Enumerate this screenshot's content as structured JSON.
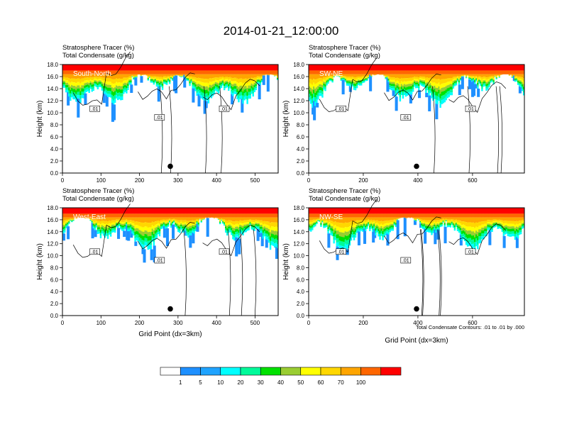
{
  "chart_data": {
    "title": "2014-01-21_12:00:00",
    "header_line1": {
      "text": "Stratosphere Tracer",
      "unit": "(%)"
    },
    "header_line2": {
      "text": "Total Condensate",
      "unit": "(g/kg)"
    },
    "ylabel": "Height (km)",
    "xlabel": "Grid Point (dx=3km)",
    "contour_note": "Total Condensate Contours: .01 to .01 by .000",
    "contour_label": ".01",
    "y_ticks": [
      "0.0",
      "2.0",
      "4.0",
      "6.0",
      "8.0",
      "10.0",
      "12.0",
      "14.0",
      "16.0",
      "18.0"
    ],
    "ylim": [
      0,
      18
    ],
    "colorbar": {
      "colors": [
        "#ffffff",
        "#1e90ff",
        "#1fa3ff",
        "#00ffff",
        "#00fa9a",
        "#00e100",
        "#9acd32",
        "#ffff00",
        "#ffd700",
        "#ffa500",
        "#ff6600",
        "#ff0000"
      ],
      "labels": [
        "1",
        "5",
        "10",
        "20",
        "30",
        "40",
        "50",
        "60",
        "70",
        "100"
      ]
    },
    "panels": [
      {
        "type": "heatmap",
        "name": "South-North",
        "xlim": [
          0,
          560
        ],
        "x_ticks": [
          "0",
          "100",
          "200",
          "300",
          "400",
          "500"
        ],
        "x_tick_values": [
          0,
          100,
          200,
          300,
          400,
          500
        ],
        "dot": {
          "x": 280,
          "y": 1.0
        }
      },
      {
        "type": "heatmap",
        "name": "SW-NE",
        "xlim": [
          0,
          790
        ],
        "x_ticks": [
          "0",
          "200",
          "400",
          "600"
        ],
        "x_tick_values": [
          0,
          200,
          400,
          600
        ],
        "dot": {
          "x": 395,
          "y": 1.0
        }
      },
      {
        "type": "heatmap",
        "name": "West-East",
        "xlim": [
          0,
          560
        ],
        "x_ticks": [
          "0",
          "100",
          "200",
          "300",
          "400",
          "500"
        ],
        "x_tick_values": [
          0,
          100,
          200,
          300,
          400,
          500
        ],
        "dot": {
          "x": 280,
          "y": 1.0
        }
      },
      {
        "type": "heatmap",
        "name": "NW-SE",
        "xlim": [
          0,
          790
        ],
        "x_ticks": [
          "0",
          "200",
          "400",
          "600"
        ],
        "x_tick_values": [
          0,
          200,
          400,
          600
        ],
        "dot": {
          "x": 395,
          "y": 1.0
        }
      }
    ]
  }
}
